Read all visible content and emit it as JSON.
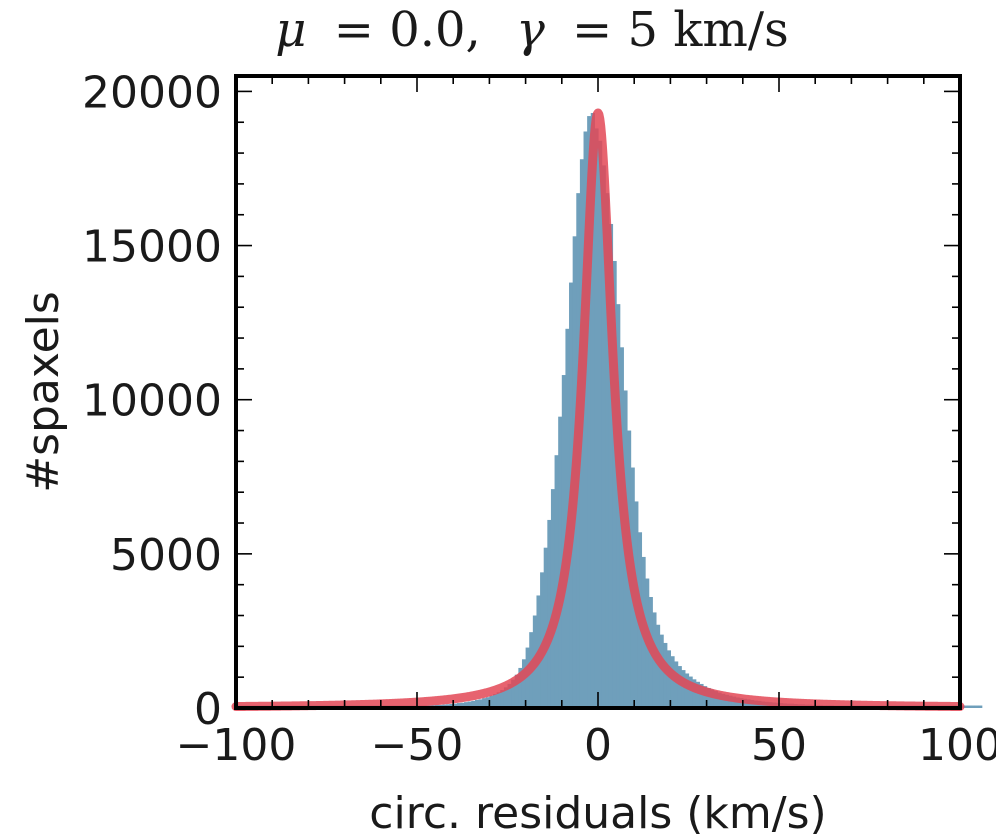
{
  "chart_data": {
    "type": "bar",
    "title": {
      "mu_symbol": "μ",
      "mu_value": "= 0.0,",
      "gamma_symbol": "γ",
      "gamma_value": "= 5 km/s"
    },
    "xlabel": "circ. residuals (km/s)",
    "ylabel": "#spaxels",
    "xlim": [
      -100,
      100
    ],
    "ylim": [
      0,
      20500
    ],
    "xticks": [
      -100,
      -50,
      0,
      50,
      100
    ],
    "xtick_labels": [
      "−100",
      "−50",
      "0",
      "50",
      "100"
    ],
    "yticks": [
      0,
      5000,
      10000,
      15000,
      20000
    ],
    "ytick_labels": [
      "0",
      "5000",
      "10000",
      "15000",
      "20000"
    ],
    "grid": false,
    "histogram": {
      "name": "",
      "color": "#6f9fbb",
      "bin_edges_start": -100,
      "bin_width": 1,
      "counts": [
        80,
        80,
        80,
        80,
        80,
        80,
        80,
        80,
        80,
        80,
        80,
        80,
        80,
        80,
        80,
        80,
        80,
        80,
        80,
        80,
        80,
        80,
        80,
        80,
        80,
        80,
        80,
        80,
        80,
        80,
        80,
        80,
        80,
        80,
        80,
        80,
        80,
        80,
        80,
        80,
        80,
        80,
        80,
        80,
        80,
        80,
        80,
        80,
        80,
        80,
        80,
        80,
        80,
        80,
        90,
        100,
        100,
        110,
        120,
        130,
        140,
        160,
        170,
        190,
        210,
        230,
        260,
        280,
        320,
        350,
        400,
        450,
        510,
        580,
        670,
        780,
        920,
        1080,
        1300,
        1580,
        1960,
        2460,
        3000,
        3650,
        4400,
        5200,
        6100,
        7100,
        8200,
        9450,
        10800,
        12300,
        13800,
        15300,
        16700,
        17800,
        18700,
        19200,
        19300,
        18800,
        18400,
        17600,
        16700,
        15700,
        14500,
        13100,
        11700,
        10300,
        9000,
        7800,
        6700,
        5700,
        4900,
        4200,
        3600,
        3100,
        2700,
        2380,
        2110,
        1870,
        1680,
        1510,
        1360,
        1230,
        1120,
        1020,
        930,
        850,
        780,
        710,
        650,
        600,
        550,
        500,
        460,
        430,
        400,
        370,
        340,
        320,
        300,
        280,
        260,
        240,
        230,
        210,
        200,
        190,
        180,
        170,
        160,
        150,
        140,
        140,
        130,
        120,
        120,
        110,
        110,
        100,
        100,
        100,
        90,
        90,
        90,
        80,
        80,
        80,
        80,
        80,
        80,
        80,
        80,
        80,
        80,
        80,
        80,
        80,
        80,
        80,
        80,
        80,
        80,
        80,
        80,
        80,
        80,
        80,
        80,
        80,
        80,
        80,
        80,
        80,
        80,
        80,
        80,
        80,
        80,
        80,
        80,
        80,
        80,
        80,
        80,
        80
      ]
    },
    "fit_curve": {
      "name": "",
      "type": "lorentzian",
      "color": "#e34856",
      "mu": 0.0,
      "gamma": 5,
      "peak": 19300,
      "baseline": 0
    }
  }
}
